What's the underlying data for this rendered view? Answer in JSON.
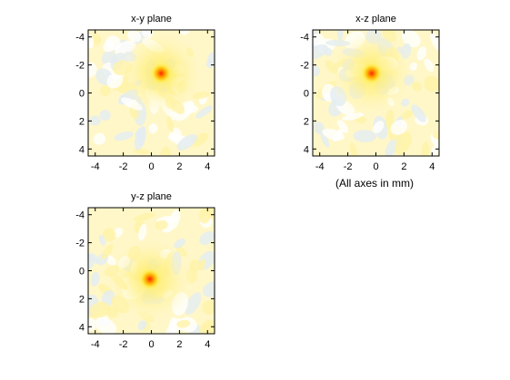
{
  "figure": {
    "note": "(All axes in mm)"
  },
  "chart_data": [
    {
      "type": "heatmap",
      "title": "x-y plane",
      "xlabel": "",
      "ylabel": "",
      "xlim": [
        -4.5,
        4.5
      ],
      "ylim": [
        -4.5,
        4.5
      ],
      "y_reversed": true,
      "xticks": [
        -4,
        -2,
        0,
        2,
        4
      ],
      "yticks": [
        -4,
        -2,
        0,
        2,
        4
      ],
      "peak": {
        "x": 0.7,
        "y": -1.4
      },
      "colormap": [
        "#e3ecf3",
        "#ffffff",
        "#fff7c8",
        "#ffec50",
        "#ffb000",
        "#ff2800"
      ]
    },
    {
      "type": "heatmap",
      "title": "x-z plane",
      "xlabel": "",
      "ylabel": "",
      "xlim": [
        -4.5,
        4.5
      ],
      "ylim": [
        -4.5,
        4.5
      ],
      "y_reversed": true,
      "xticks": [
        -4,
        -2,
        0,
        2,
        4
      ],
      "yticks": [
        -4,
        -2,
        0,
        2,
        4
      ],
      "peak": {
        "x": -0.3,
        "y": -1.4
      },
      "colormap": [
        "#e3ecf3",
        "#ffffff",
        "#fff7c8",
        "#ffec50",
        "#ffb000",
        "#ff2800"
      ]
    },
    {
      "type": "heatmap",
      "title": "y-z plane",
      "xlabel": "",
      "ylabel": "",
      "xlim": [
        -4.5,
        4.5
      ],
      "ylim": [
        -4.5,
        4.5
      ],
      "y_reversed": true,
      "xticks": [
        -4,
        -2,
        0,
        2,
        4
      ],
      "yticks": [
        -4,
        -2,
        0,
        2,
        4
      ],
      "peak": {
        "x": -0.1,
        "y": 0.6
      },
      "colormap": [
        "#e3ecf3",
        "#ffffff",
        "#fff7c8",
        "#ffec50",
        "#ffb000",
        "#ff2800"
      ]
    }
  ]
}
